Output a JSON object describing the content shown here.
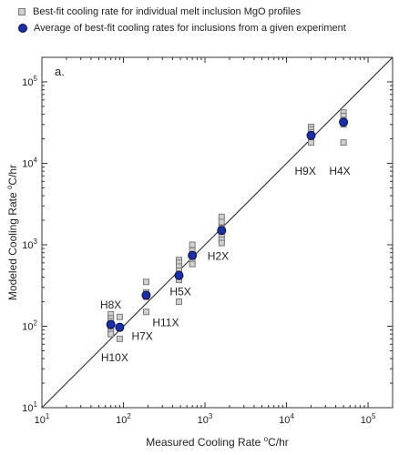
{
  "chart_data": {
    "type": "scatter",
    "panel_label": "a.",
    "xlabel_prefix": "Measured Cooling Rate ",
    "ylabel_prefix": "Modeled Cooling Rate ",
    "unit_sup": "o",
    "unit_tail": "C/hr",
    "x_scale": "log",
    "y_scale": "log",
    "xlim": [
      10,
      200000
    ],
    "ylim": [
      10,
      200000
    ],
    "x_ticks": [
      {
        "value": 10,
        "base": "10",
        "exp": "1"
      },
      {
        "value": 100,
        "base": "10",
        "exp": "2"
      },
      {
        "value": 1000,
        "base": "10",
        "exp": "3"
      },
      {
        "value": 10000,
        "base": "10",
        "exp": "4"
      },
      {
        "value": 100000,
        "base": "10",
        "exp": "5"
      }
    ],
    "y_ticks": [
      {
        "value": 10,
        "base": "10",
        "exp": "1"
      },
      {
        "value": 100,
        "base": "10",
        "exp": "2"
      },
      {
        "value": 1000,
        "base": "10",
        "exp": "3"
      },
      {
        "value": 10000,
        "base": "10",
        "exp": "4"
      },
      {
        "value": 100000,
        "base": "10",
        "exp": "5"
      }
    ],
    "reference_line": "1:1",
    "series": [
      {
        "name": "Best-fit cooling rate for individual melt inclusion MgO profiles",
        "marker": "square",
        "points": [
          {
            "x": 70,
            "y": 140
          },
          {
            "x": 70,
            "y": 125
          },
          {
            "x": 70,
            "y": 115
          },
          {
            "x": 70,
            "y": 100
          },
          {
            "x": 70,
            "y": 92
          },
          {
            "x": 70,
            "y": 85
          },
          {
            "x": 70,
            "y": 80
          },
          {
            "x": 90,
            "y": 130
          },
          {
            "x": 90,
            "y": 95
          },
          {
            "x": 90,
            "y": 70
          },
          {
            "x": 190,
            "y": 350
          },
          {
            "x": 190,
            "y": 260
          },
          {
            "x": 190,
            "y": 230
          },
          {
            "x": 190,
            "y": 150
          },
          {
            "x": 480,
            "y": 650
          },
          {
            "x": 480,
            "y": 600
          },
          {
            "x": 480,
            "y": 540
          },
          {
            "x": 480,
            "y": 480
          },
          {
            "x": 480,
            "y": 440
          },
          {
            "x": 480,
            "y": 400
          },
          {
            "x": 480,
            "y": 370
          },
          {
            "x": 480,
            "y": 200
          },
          {
            "x": 700,
            "y": 1000
          },
          {
            "x": 700,
            "y": 850
          },
          {
            "x": 700,
            "y": 720
          },
          {
            "x": 700,
            "y": 640
          },
          {
            "x": 700,
            "y": 580
          },
          {
            "x": 1600,
            "y": 2200
          },
          {
            "x": 1600,
            "y": 1900
          },
          {
            "x": 1600,
            "y": 1600
          },
          {
            "x": 1600,
            "y": 1450
          },
          {
            "x": 1600,
            "y": 1300
          },
          {
            "x": 1600,
            "y": 1150
          },
          {
            "x": 1600,
            "y": 1050
          },
          {
            "x": 20000,
            "y": 28000
          },
          {
            "x": 20000,
            "y": 26000
          },
          {
            "x": 20000,
            "y": 24000
          },
          {
            "x": 20000,
            "y": 22000
          },
          {
            "x": 20000,
            "y": 20000
          },
          {
            "x": 20000,
            "y": 18000
          },
          {
            "x": 50000,
            "y": 42000
          },
          {
            "x": 50000,
            "y": 38000
          },
          {
            "x": 50000,
            "y": 34000
          },
          {
            "x": 50000,
            "y": 30000
          },
          {
            "x": 50000,
            "y": 18000
          }
        ]
      },
      {
        "name": "Average of best-fit cooling rates for inclusions from a given experiment",
        "marker": "circle",
        "points": [
          {
            "x": 70,
            "y": 105
          },
          {
            "x": 90,
            "y": 97
          },
          {
            "x": 190,
            "y": 240
          },
          {
            "x": 480,
            "y": 420
          },
          {
            "x": 700,
            "y": 740
          },
          {
            "x": 1600,
            "y": 1500
          },
          {
            "x": 20000,
            "y": 22000
          },
          {
            "x": 50000,
            "y": 32000
          }
        ]
      }
    ],
    "annotations": [
      {
        "text": "H8X",
        "x": 70,
        "y": 165
      },
      {
        "text": "H10X",
        "x": 78,
        "y": 37
      },
      {
        "text": "H7X",
        "x": 170,
        "y": 68
      },
      {
        "text": "H11X",
        "x": 330,
        "y": 100
      },
      {
        "text": "H5X",
        "x": 500,
        "y": 240
      },
      {
        "text": "H2X",
        "x": 1450,
        "y": 650
      },
      {
        "text": "H9X",
        "x": 17000,
        "y": 7200
      },
      {
        "text": "H4X",
        "x": 45000,
        "y": 7200
      }
    ]
  }
}
